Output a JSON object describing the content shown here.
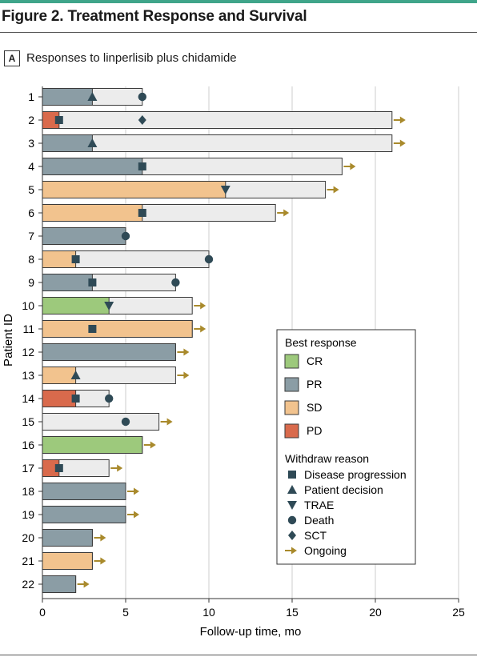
{
  "figure": {
    "title": "Figure 2. Treatment Response and Survival",
    "panel_letter": "A",
    "panel_title": "Responses to linperlisib plus chidamide"
  },
  "chart_data": {
    "type": "bar",
    "orientation": "horizontal",
    "xlabel": "Follow-up time, mo",
    "ylabel": "Patient ID",
    "xlim": [
      0,
      25
    ],
    "xticks": [
      0,
      5,
      10,
      15,
      20,
      25
    ],
    "grid": "vertical",
    "colors": {
      "CR": "#9dc97c",
      "PR": "#8b9da5",
      "SD": "#f2c38e",
      "PD": "#d96a4c",
      "none": "#ececec",
      "marker": "#2f4a56",
      "ongoing": "#a98a2c"
    },
    "legend": {
      "placement": "right-center",
      "response_title": "Best response",
      "responses": [
        {
          "key": "CR",
          "label": "CR"
        },
        {
          "key": "PR",
          "label": "PR"
        },
        {
          "key": "SD",
          "label": "SD"
        },
        {
          "key": "PD",
          "label": "PD"
        }
      ],
      "withdraw_title": "Withdraw reason",
      "withdraw": [
        {
          "key": "progression",
          "label": "Disease progression"
        },
        {
          "key": "patient",
          "label": "Patient decision"
        },
        {
          "key": "trae",
          "label": "TRAE"
        },
        {
          "key": "death",
          "label": "Death"
        },
        {
          "key": "sct",
          "label": "SCT"
        },
        {
          "key": "ongoing",
          "label": "Ongoing"
        }
      ]
    },
    "patients": [
      {
        "id": "1",
        "response": "PR",
        "response_end": 3,
        "total": 6,
        "ongoing": false,
        "events": [
          {
            "type": "patient",
            "t": 3
          },
          {
            "type": "death",
            "t": 6
          }
        ]
      },
      {
        "id": "2",
        "response": "PD",
        "response_end": 1,
        "total": 21,
        "ongoing": true,
        "events": [
          {
            "type": "progression",
            "t": 1
          },
          {
            "type": "sct",
            "t": 6
          }
        ]
      },
      {
        "id": "3",
        "response": "PR",
        "response_end": 3,
        "total": 21,
        "ongoing": true,
        "events": [
          {
            "type": "patient",
            "t": 3
          }
        ]
      },
      {
        "id": "4",
        "response": "PR",
        "response_end": 6,
        "total": 18,
        "ongoing": true,
        "events": [
          {
            "type": "progression",
            "t": 6
          }
        ]
      },
      {
        "id": "5",
        "response": "SD",
        "response_end": 11,
        "total": 17,
        "ongoing": true,
        "events": [
          {
            "type": "trae",
            "t": 11
          }
        ]
      },
      {
        "id": "6",
        "response": "SD",
        "response_end": 6,
        "total": 14,
        "ongoing": true,
        "events": [
          {
            "type": "progression",
            "t": 6
          }
        ]
      },
      {
        "id": "7",
        "response": "PR",
        "response_end": 5,
        "total": 5,
        "ongoing": false,
        "events": [
          {
            "type": "death",
            "t": 5
          }
        ]
      },
      {
        "id": "8",
        "response": "SD",
        "response_end": 2,
        "total": 10,
        "ongoing": false,
        "events": [
          {
            "type": "progression",
            "t": 2
          },
          {
            "type": "death",
            "t": 10
          }
        ]
      },
      {
        "id": "9",
        "response": "PR",
        "response_end": 3,
        "total": 8,
        "ongoing": false,
        "events": [
          {
            "type": "progression",
            "t": 3
          },
          {
            "type": "death",
            "t": 8
          }
        ]
      },
      {
        "id": "10",
        "response": "CR",
        "response_end": 4,
        "total": 9,
        "ongoing": true,
        "events": [
          {
            "type": "trae",
            "t": 4
          }
        ]
      },
      {
        "id": "11",
        "response": "SD",
        "response_end": 9,
        "total": 9,
        "ongoing": true,
        "events": [
          {
            "type": "progression",
            "t": 3
          }
        ]
      },
      {
        "id": "12",
        "response": "PR",
        "response_end": 8,
        "total": 8,
        "ongoing": true,
        "events": []
      },
      {
        "id": "13",
        "response": "SD",
        "response_end": 2,
        "total": 8,
        "ongoing": true,
        "events": [
          {
            "type": "patient",
            "t": 2
          }
        ]
      },
      {
        "id": "14",
        "response": "PD",
        "response_end": 2,
        "total": 4,
        "ongoing": false,
        "events": [
          {
            "type": "progression",
            "t": 2
          },
          {
            "type": "death",
            "t": 4
          }
        ]
      },
      {
        "id": "15",
        "response": "none",
        "response_end": 0,
        "total": 7,
        "ongoing": true,
        "events": [
          {
            "type": "death",
            "t": 5
          }
        ]
      },
      {
        "id": "16",
        "response": "CR",
        "response_end": 6,
        "total": 6,
        "ongoing": true,
        "events": []
      },
      {
        "id": "17",
        "response": "PD",
        "response_end": 1,
        "total": 4,
        "ongoing": true,
        "events": [
          {
            "type": "progression",
            "t": 1
          }
        ]
      },
      {
        "id": "18",
        "response": "PR",
        "response_end": 5,
        "total": 5,
        "ongoing": true,
        "events": []
      },
      {
        "id": "19",
        "response": "PR",
        "response_end": 5,
        "total": 5,
        "ongoing": true,
        "events": []
      },
      {
        "id": "20",
        "response": "PR",
        "response_end": 3,
        "total": 3,
        "ongoing": true,
        "events": []
      },
      {
        "id": "21",
        "response": "SD",
        "response_end": 3,
        "total": 3,
        "ongoing": true,
        "events": []
      },
      {
        "id": "22",
        "response": "PR",
        "response_end": 2,
        "total": 2,
        "ongoing": true,
        "events": []
      }
    ]
  }
}
